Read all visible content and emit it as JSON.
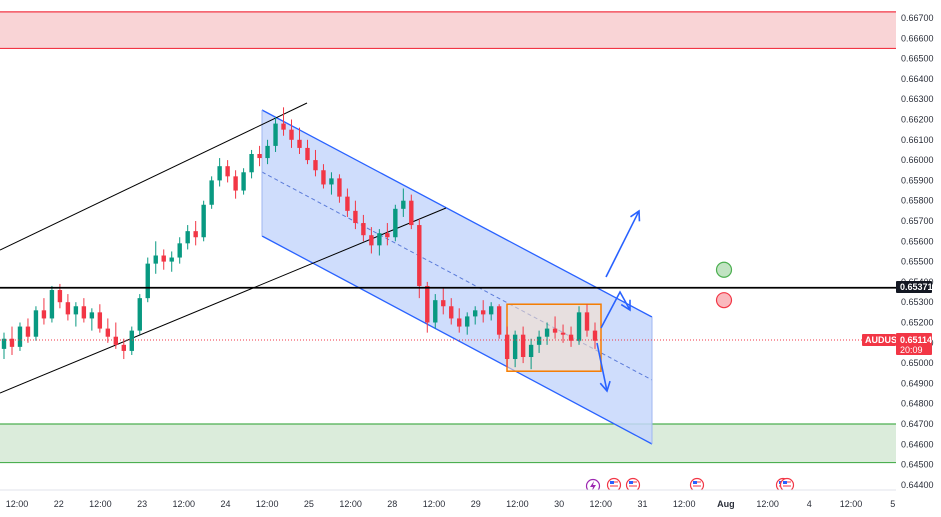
{
  "chart_data": {
    "type": "candlestick",
    "symbol": "AUDUSD",
    "price_axis": {
      "range": [
        0.644,
        0.6675
      ],
      "ticks": [
        "0.66700",
        "0.66600",
        "0.66500",
        "0.66400",
        "0.66300",
        "0.66200",
        "0.66100",
        "0.66000",
        "0.65900",
        "0.65800",
        "0.65700",
        "0.65600",
        "0.65500",
        "0.65400",
        "0.65300",
        "0.65200",
        "0.65100",
        "0.65000",
        "0.64900",
        "0.64800",
        "0.64700",
        "0.64600",
        "0.64500",
        "0.64400"
      ]
    },
    "time_axis": {
      "labels": [
        "12:00",
        "22",
        "12:00",
        "23",
        "12:00",
        "24",
        "12:00",
        "25",
        "12:00",
        "28",
        "12:00",
        "29",
        "12:00",
        "30",
        "12:00",
        "31",
        "12:00",
        "Aug",
        "12:00",
        "4",
        "12:00",
        "5"
      ]
    },
    "current_price": {
      "symbol": "AUDUSD",
      "price": "0.65114",
      "countdown": "20:09",
      "value": 0.65114
    },
    "horizontal_line": {
      "label": "0.65371",
      "value": 0.65371
    },
    "zones": [
      {
        "name": "resistance",
        "from": 0.6655,
        "to": 0.6673,
        "color": "#f7c5c8"
      },
      {
        "name": "support",
        "from": 0.6451,
        "to": 0.647,
        "color": "#cfe6cf"
      }
    ],
    "markers": [
      {
        "name": "green-circle",
        "price": 0.6546,
        "color": "#4caf50"
      },
      {
        "name": "red-circle",
        "price": 0.6531,
        "color": "#f23645"
      }
    ],
    "ascending_channel": {
      "color": "#000000"
    },
    "descending_channel": {
      "color": "#2962ff",
      "fill": "#c7d7fb"
    },
    "consolidation_box": {
      "from": 0.6496,
      "to": 0.6529,
      "color": "#f57c00"
    },
    "colors": {
      "up": "#089981",
      "down": "#f23645",
      "accent": "#2962ff"
    },
    "candles": [
      {
        "o": 0.6507,
        "h": 0.6515,
        "l": 0.6502,
        "c": 0.6512
      },
      {
        "o": 0.6512,
        "h": 0.6518,
        "l": 0.6504,
        "c": 0.6508
      },
      {
        "o": 0.6508,
        "h": 0.652,
        "l": 0.6506,
        "c": 0.6518
      },
      {
        "o": 0.6518,
        "h": 0.6522,
        "l": 0.651,
        "c": 0.6513
      },
      {
        "o": 0.6513,
        "h": 0.6528,
        "l": 0.6511,
        "c": 0.6526
      },
      {
        "o": 0.6526,
        "h": 0.6532,
        "l": 0.6519,
        "c": 0.6522
      },
      {
        "o": 0.6522,
        "h": 0.6538,
        "l": 0.652,
        "c": 0.6536
      },
      {
        "o": 0.6536,
        "h": 0.6539,
        "l": 0.6527,
        "c": 0.653
      },
      {
        "o": 0.653,
        "h": 0.6534,
        "l": 0.6521,
        "c": 0.6524
      },
      {
        "o": 0.6524,
        "h": 0.653,
        "l": 0.6518,
        "c": 0.6528
      },
      {
        "o": 0.6528,
        "h": 0.6532,
        "l": 0.652,
        "c": 0.6522
      },
      {
        "o": 0.6522,
        "h": 0.6527,
        "l": 0.6516,
        "c": 0.6525
      },
      {
        "o": 0.6525,
        "h": 0.6529,
        "l": 0.6515,
        "c": 0.6517
      },
      {
        "o": 0.6517,
        "h": 0.6522,
        "l": 0.651,
        "c": 0.6513
      },
      {
        "o": 0.6513,
        "h": 0.652,
        "l": 0.6507,
        "c": 0.6509
      },
      {
        "o": 0.6509,
        "h": 0.6512,
        "l": 0.6502,
        "c": 0.6506
      },
      {
        "o": 0.6506,
        "h": 0.6518,
        "l": 0.6504,
        "c": 0.6516
      },
      {
        "o": 0.6516,
        "h": 0.6534,
        "l": 0.6514,
        "c": 0.6532
      },
      {
        "o": 0.6532,
        "h": 0.6552,
        "l": 0.653,
        "c": 0.6549
      },
      {
        "o": 0.6549,
        "h": 0.656,
        "l": 0.6544,
        "c": 0.6553
      },
      {
        "o": 0.6553,
        "h": 0.6556,
        "l": 0.6546,
        "c": 0.655
      },
      {
        "o": 0.655,
        "h": 0.6555,
        "l": 0.6545,
        "c": 0.6552
      },
      {
        "o": 0.6552,
        "h": 0.6562,
        "l": 0.6549,
        "c": 0.6559
      },
      {
        "o": 0.6559,
        "h": 0.6568,
        "l": 0.6556,
        "c": 0.6565
      },
      {
        "o": 0.6565,
        "h": 0.657,
        "l": 0.6558,
        "c": 0.6562
      },
      {
        "o": 0.6562,
        "h": 0.658,
        "l": 0.656,
        "c": 0.6578
      },
      {
        "o": 0.6578,
        "h": 0.6592,
        "l": 0.6576,
        "c": 0.659
      },
      {
        "o": 0.659,
        "h": 0.6601,
        "l": 0.6587,
        "c": 0.6597
      },
      {
        "o": 0.6597,
        "h": 0.66,
        "l": 0.6589,
        "c": 0.6592
      },
      {
        "o": 0.6592,
        "h": 0.6595,
        "l": 0.6581,
        "c": 0.6585
      },
      {
        "o": 0.6585,
        "h": 0.6596,
        "l": 0.6583,
        "c": 0.6594
      },
      {
        "o": 0.6594,
        "h": 0.6605,
        "l": 0.6591,
        "c": 0.6603
      },
      {
        "o": 0.6603,
        "h": 0.6607,
        "l": 0.6597,
        "c": 0.6601
      },
      {
        "o": 0.6601,
        "h": 0.661,
        "l": 0.6598,
        "c": 0.6607
      },
      {
        "o": 0.6607,
        "h": 0.6621,
        "l": 0.6604,
        "c": 0.6618
      },
      {
        "o": 0.6618,
        "h": 0.6626,
        "l": 0.6612,
        "c": 0.6615
      },
      {
        "o": 0.6615,
        "h": 0.662,
        "l": 0.6606,
        "c": 0.661
      },
      {
        "o": 0.661,
        "h": 0.6616,
        "l": 0.6603,
        "c": 0.6606
      },
      {
        "o": 0.6606,
        "h": 0.661,
        "l": 0.6598,
        "c": 0.66
      },
      {
        "o": 0.66,
        "h": 0.6605,
        "l": 0.6592,
        "c": 0.6595
      },
      {
        "o": 0.6595,
        "h": 0.6598,
        "l": 0.6586,
        "c": 0.6588
      },
      {
        "o": 0.6588,
        "h": 0.6594,
        "l": 0.6583,
        "c": 0.6591
      },
      {
        "o": 0.6591,
        "h": 0.6593,
        "l": 0.6579,
        "c": 0.6582
      },
      {
        "o": 0.6582,
        "h": 0.6586,
        "l": 0.6572,
        "c": 0.6575
      },
      {
        "o": 0.6575,
        "h": 0.658,
        "l": 0.6566,
        "c": 0.6569
      },
      {
        "o": 0.6569,
        "h": 0.6573,
        "l": 0.656,
        "c": 0.6563
      },
      {
        "o": 0.6563,
        "h": 0.6567,
        "l": 0.6554,
        "c": 0.6558
      },
      {
        "o": 0.6558,
        "h": 0.6566,
        "l": 0.6553,
        "c": 0.6564
      },
      {
        "o": 0.6564,
        "h": 0.6569,
        "l": 0.6558,
        "c": 0.6562
      },
      {
        "o": 0.6562,
        "h": 0.6578,
        "l": 0.656,
        "c": 0.6576
      },
      {
        "o": 0.6576,
        "h": 0.6586,
        "l": 0.6572,
        "c": 0.658
      },
      {
        "o": 0.658,
        "h": 0.6583,
        "l": 0.6566,
        "c": 0.6568
      },
      {
        "o": 0.6568,
        "h": 0.6571,
        "l": 0.6532,
        "c": 0.6538
      },
      {
        "o": 0.6538,
        "h": 0.654,
        "l": 0.6515,
        "c": 0.652
      },
      {
        "o": 0.652,
        "h": 0.6534,
        "l": 0.6517,
        "c": 0.6531
      },
      {
        "o": 0.6531,
        "h": 0.6537,
        "l": 0.6524,
        "c": 0.6528
      },
      {
        "o": 0.6528,
        "h": 0.6532,
        "l": 0.6519,
        "c": 0.6522
      },
      {
        "o": 0.6522,
        "h": 0.6527,
        "l": 0.6515,
        "c": 0.6518
      },
      {
        "o": 0.6518,
        "h": 0.6525,
        "l": 0.6514,
        "c": 0.6523
      },
      {
        "o": 0.6523,
        "h": 0.6528,
        "l": 0.6519,
        "c": 0.6526
      },
      {
        "o": 0.6526,
        "h": 0.6531,
        "l": 0.652,
        "c": 0.6524
      },
      {
        "o": 0.6524,
        "h": 0.653,
        "l": 0.6521,
        "c": 0.6528
      },
      {
        "o": 0.6528,
        "h": 0.6529,
        "l": 0.6512,
        "c": 0.6514
      },
      {
        "o": 0.6514,
        "h": 0.6518,
        "l": 0.6498,
        "c": 0.6502
      },
      {
        "o": 0.6502,
        "h": 0.6516,
        "l": 0.6498,
        "c": 0.6514
      },
      {
        "o": 0.6514,
        "h": 0.6518,
        "l": 0.65,
        "c": 0.6503
      },
      {
        "o": 0.6503,
        "h": 0.6512,
        "l": 0.6497,
        "c": 0.6509
      },
      {
        "o": 0.6509,
        "h": 0.6516,
        "l": 0.6505,
        "c": 0.6513
      },
      {
        "o": 0.6513,
        "h": 0.652,
        "l": 0.6509,
        "c": 0.6517
      },
      {
        "o": 0.6517,
        "h": 0.6523,
        "l": 0.6512,
        "c": 0.6515
      },
      {
        "o": 0.6515,
        "h": 0.6519,
        "l": 0.651,
        "c": 0.6514
      },
      {
        "o": 0.6514,
        "h": 0.6518,
        "l": 0.6508,
        "c": 0.6511
      },
      {
        "o": 0.6511,
        "h": 0.6528,
        "l": 0.6509,
        "c": 0.6525
      },
      {
        "o": 0.6525,
        "h": 0.6529,
        "l": 0.6513,
        "c": 0.6516
      },
      {
        "o": 0.6516,
        "h": 0.652,
        "l": 0.6507,
        "c": 0.6511
      }
    ]
  }
}
